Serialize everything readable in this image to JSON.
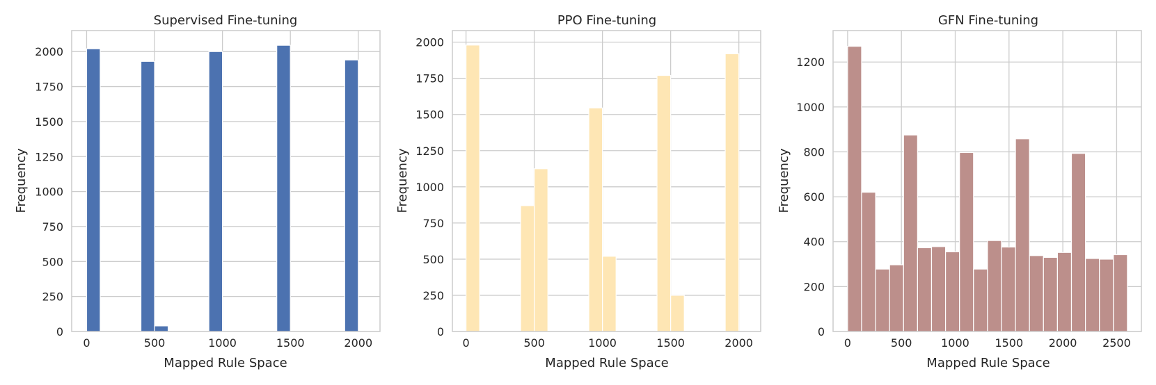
{
  "chart_data": [
    {
      "type": "histogram",
      "title": "Supervised Fine-tuning",
      "xlabel": "Mapped Rule Space",
      "ylabel": "Frequency",
      "color": "#4c72b0",
      "xlim": [
        -110,
        2160
      ],
      "ylim": [
        0,
        2150
      ],
      "xticks": [
        0,
        500,
        1000,
        1500,
        2000
      ],
      "yticks": [
        0,
        250,
        500,
        750,
        1000,
        1250,
        1500,
        1750,
        2000
      ],
      "bins": [
        {
          "x0": 0,
          "x1": 100,
          "value": 2020
        },
        {
          "x0": 100,
          "x1": 200,
          "value": 0
        },
        {
          "x0": 200,
          "x1": 300,
          "value": 0
        },
        {
          "x0": 300,
          "x1": 400,
          "value": 0
        },
        {
          "x0": 400,
          "x1": 500,
          "value": 1930
        },
        {
          "x0": 500,
          "x1": 600,
          "value": 40
        },
        {
          "x0": 600,
          "x1": 700,
          "value": 0
        },
        {
          "x0": 700,
          "x1": 800,
          "value": 0
        },
        {
          "x0": 800,
          "x1": 900,
          "value": 0
        },
        {
          "x0": 900,
          "x1": 1000,
          "value": 2000
        },
        {
          "x0": 1000,
          "x1": 1100,
          "value": 0
        },
        {
          "x0": 1100,
          "x1": 1200,
          "value": 0
        },
        {
          "x0": 1200,
          "x1": 1300,
          "value": 0
        },
        {
          "x0": 1300,
          "x1": 1400,
          "value": 0
        },
        {
          "x0": 1400,
          "x1": 1500,
          "value": 2045
        },
        {
          "x0": 1500,
          "x1": 1600,
          "value": 0
        },
        {
          "x0": 1600,
          "x1": 1700,
          "value": 0
        },
        {
          "x0": 1700,
          "x1": 1800,
          "value": 0
        },
        {
          "x0": 1800,
          "x1": 1900,
          "value": 0
        },
        {
          "x0": 1900,
          "x1": 2000,
          "value": 1940
        }
      ]
    },
    {
      "type": "histogram",
      "title": "PPO Fine-tuning",
      "xlabel": "Mapped Rule Space",
      "ylabel": "Frequency",
      "color": "#fee6b4",
      "xlim": [
        -100,
        2160
      ],
      "ylim": [
        0,
        2080
      ],
      "xticks": [
        0,
        500,
        1000,
        1500,
        2000
      ],
      "yticks": [
        0,
        250,
        500,
        750,
        1000,
        1250,
        1500,
        1750,
        2000
      ],
      "bins": [
        {
          "x0": 0,
          "x1": 100,
          "value": 1980
        },
        {
          "x0": 100,
          "x1": 200,
          "value": 0
        },
        {
          "x0": 200,
          "x1": 300,
          "value": 0
        },
        {
          "x0": 300,
          "x1": 400,
          "value": 0
        },
        {
          "x0": 400,
          "x1": 500,
          "value": 870
        },
        {
          "x0": 500,
          "x1": 600,
          "value": 1125
        },
        {
          "x0": 600,
          "x1": 700,
          "value": 0
        },
        {
          "x0": 700,
          "x1": 800,
          "value": 0
        },
        {
          "x0": 800,
          "x1": 900,
          "value": 0
        },
        {
          "x0": 900,
          "x1": 1000,
          "value": 1545
        },
        {
          "x0": 1000,
          "x1": 1100,
          "value": 520
        },
        {
          "x0": 1100,
          "x1": 1200,
          "value": 0
        },
        {
          "x0": 1200,
          "x1": 1300,
          "value": 0
        },
        {
          "x0": 1300,
          "x1": 1400,
          "value": 0
        },
        {
          "x0": 1400,
          "x1": 1500,
          "value": 1770
        },
        {
          "x0": 1500,
          "x1": 1600,
          "value": 250
        },
        {
          "x0": 1600,
          "x1": 1700,
          "value": 0
        },
        {
          "x0": 1700,
          "x1": 1800,
          "value": 0
        },
        {
          "x0": 1800,
          "x1": 1900,
          "value": 0
        },
        {
          "x0": 1900,
          "x1": 2000,
          "value": 1920
        }
      ]
    },
    {
      "type": "histogram",
      "title": "GFN Fine-tuning",
      "xlabel": "Mapped Rule Space",
      "ylabel": "Frequency",
      "color": "#bc8f8b",
      "xlim": [
        -135,
        2730
      ],
      "ylim": [
        0,
        1340
      ],
      "xticks": [
        0,
        500,
        1000,
        1500,
        2000,
        2500
      ],
      "yticks": [
        0,
        200,
        400,
        600,
        800,
        1000,
        1200
      ],
      "bins": [
        {
          "x0": 0,
          "x1": 130,
          "value": 1270
        },
        {
          "x0": 130,
          "x1": 260,
          "value": 620
        },
        {
          "x0": 260,
          "x1": 390,
          "value": 278
        },
        {
          "x0": 390,
          "x1": 520,
          "value": 297
        },
        {
          "x0": 520,
          "x1": 650,
          "value": 875
        },
        {
          "x0": 650,
          "x1": 780,
          "value": 373
        },
        {
          "x0": 780,
          "x1": 910,
          "value": 378
        },
        {
          "x0": 910,
          "x1": 1040,
          "value": 355
        },
        {
          "x0": 1040,
          "x1": 1170,
          "value": 797
        },
        {
          "x0": 1170,
          "x1": 1300,
          "value": 278
        },
        {
          "x0": 1300,
          "x1": 1430,
          "value": 405
        },
        {
          "x0": 1430,
          "x1": 1560,
          "value": 376
        },
        {
          "x0": 1560,
          "x1": 1690,
          "value": 858
        },
        {
          "x0": 1690,
          "x1": 1820,
          "value": 338
        },
        {
          "x0": 1820,
          "x1": 1950,
          "value": 330
        },
        {
          "x0": 1950,
          "x1": 2080,
          "value": 352
        },
        {
          "x0": 2080,
          "x1": 2210,
          "value": 793
        },
        {
          "x0": 2210,
          "x1": 2340,
          "value": 325
        },
        {
          "x0": 2340,
          "x1": 2470,
          "value": 322
        },
        {
          "x0": 2470,
          "x1": 2600,
          "value": 342
        }
      ]
    }
  ]
}
